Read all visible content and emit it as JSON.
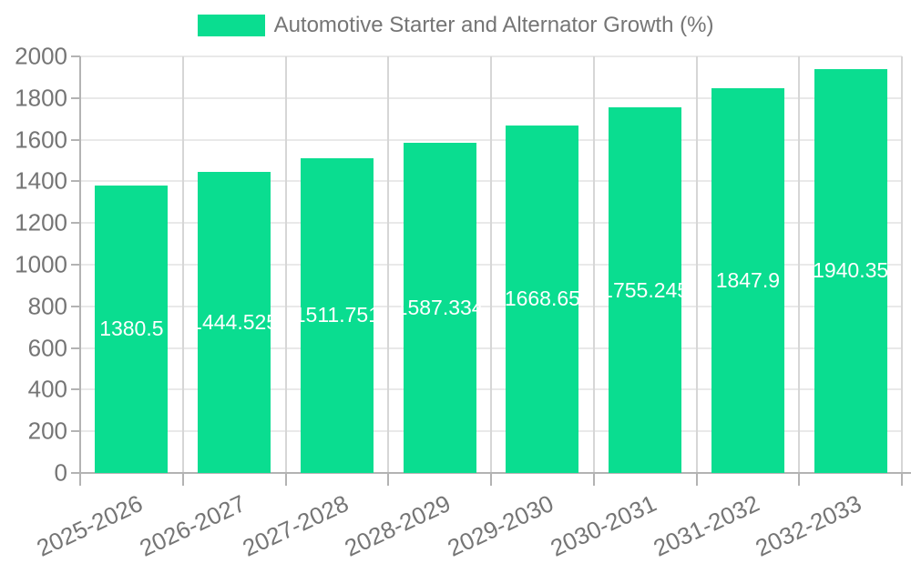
{
  "legend": {
    "label": "Automotive Starter and Alternator Growth (%)",
    "swatch_color": "#0add90"
  },
  "chart_data": {
    "type": "bar",
    "title": "Automotive Starter and Alternator Growth (%)",
    "categories": [
      "2025-2026",
      "2026-2027",
      "2027-2028",
      "2028-2029",
      "2029-2030",
      "2030-2031",
      "2031-2032",
      "2032-2033"
    ],
    "values": [
      1380.5,
      1444.525,
      1511.751,
      1587.334,
      1668.65,
      1755.245,
      1847.9,
      1940.35
    ],
    "value_labels": [
      "1380.5",
      "1444.525",
      "1511.751",
      "1587.334",
      "1668.65",
      "1755.245",
      "1847.9",
      "1940.35"
    ],
    "xlabel": "",
    "ylabel": "",
    "ylim": [
      0,
      2000
    ],
    "ytick_step": 200,
    "ytick_labels": [
      "0",
      "200",
      "400",
      "600",
      "800",
      "1000",
      "1200",
      "1400",
      "1600",
      "1800",
      "2000"
    ],
    "grid": true,
    "legend_position": "top",
    "colors": {
      "bar": "#0add90",
      "value_label": "#ffffff",
      "tick_label": "#757575",
      "axis": "#b3b3b3",
      "tick": "#b3b3b3",
      "grid_horizontal": "#e9e9e9",
      "grid_vertical": "#d6d6d6",
      "background": "#ffffff"
    }
  }
}
